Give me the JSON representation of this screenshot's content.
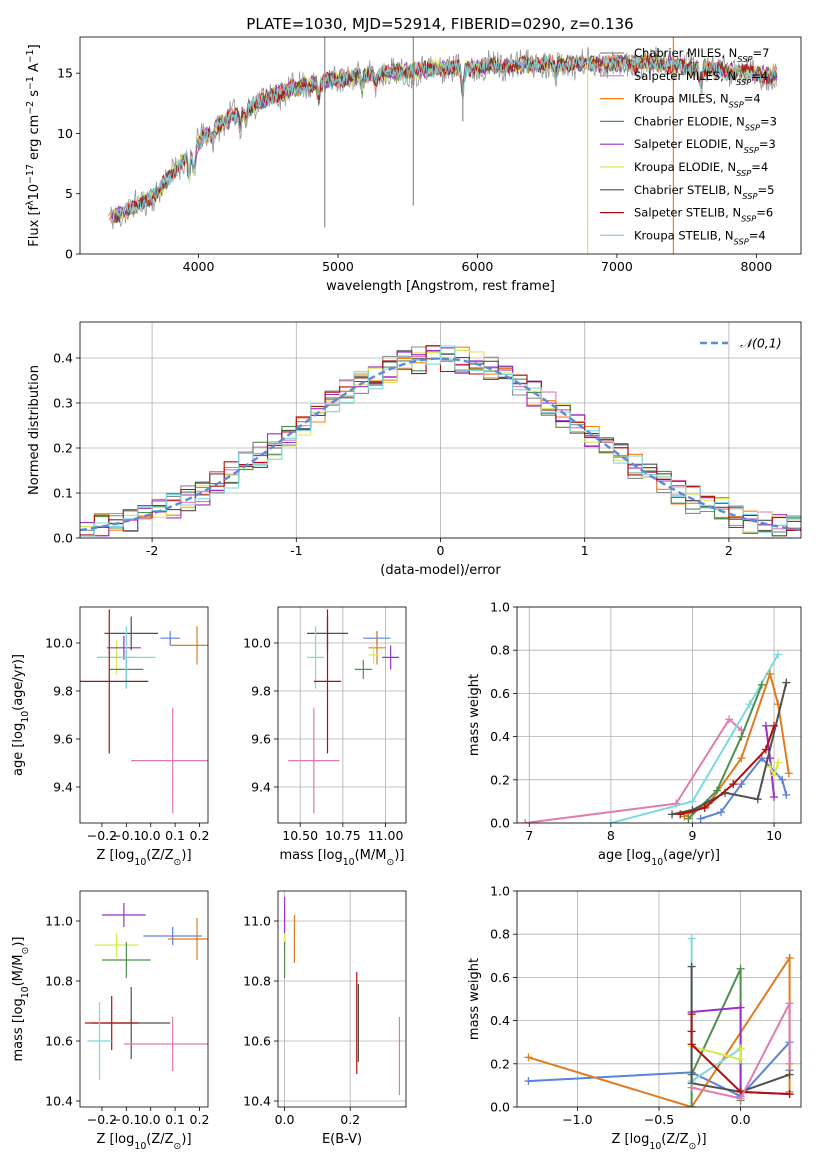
{
  "figure": {
    "title": "PLATE=1030, MJD=52914, FIBERID=0290, z=0.136"
  },
  "colors": {
    "Chabrier MILES": "#8c8c8c",
    "Salpeter MILES": "#e377c2",
    "Kroupa MILES": "#ff7f0e",
    "Chabrier ELODIE": "#4f8f4f",
    "Salpeter ELODIE": "#9b30c8",
    "Kroupa ELODIE": "#d9e85a",
    "Chabrier STELIB": "#505050",
    "Salpeter STELIB": "#b01010",
    "Kroupa STELIB": "#7fd8e0",
    "blue": "#5b83d6",
    "orange": "#e07b1f",
    "green": "#4f8f4f",
    "purple": "#9b30c8",
    "lime": "#d4ec4a",
    "darkgray": "#505050",
    "red": "#b01010",
    "cyan": "#7fd8e0",
    "pink": "#e07bb0",
    "gray": "#8c8c8c"
  },
  "chart_data": [
    {
      "id": "spectrum",
      "type": "line",
      "xlabel": "wavelength [Angstrom, rest frame]",
      "ylabel_parts": [
        "Flux [f",
        "λ",
        "10",
        "−17",
        " erg cm",
        "−2",
        " s",
        "−1",
        " A",
        "−1",
        "]"
      ],
      "xlim": [
        3150,
        8320
      ],
      "ylim": [
        0,
        18
      ],
      "xticks": [
        4000,
        5000,
        6000,
        7000,
        8000
      ],
      "yticks": [
        0,
        5,
        10,
        15
      ],
      "legend_position": "right",
      "series": [
        {
          "name": "Chabrier MILES",
          "nssp": "7",
          "color": "#8c8c8c"
        },
        {
          "name": "Salpeter MILES",
          "nssp": "4",
          "color": "#e377c2"
        },
        {
          "name": "Kroupa MILES",
          "nssp": "4",
          "color": "#ff7f0e"
        },
        {
          "name": "Chabrier ELODIE",
          "nssp": "3",
          "color": "#4f8f4f"
        },
        {
          "name": "Salpeter ELODIE",
          "nssp": "3",
          "color": "#9b30c8"
        },
        {
          "name": "Kroupa ELODIE",
          "nssp": "4",
          "color": "#d9e85a"
        },
        {
          "name": "Chabrier STELIB",
          "nssp": "5",
          "color": "#505050"
        },
        {
          "name": "Salpeter STELIB",
          "nssp": "6",
          "color": "#b01010"
        },
        {
          "name": "Kroupa STELIB",
          "nssp": "4",
          "color": "#7fd8e0"
        }
      ],
      "continuum": {
        "x": [
          3350,
          3500,
          3700,
          3900,
          4100,
          4300,
          4500,
          4700,
          4900,
          5100,
          5300,
          5500,
          5700,
          5900,
          6100,
          6300,
          6500,
          6700,
          6900,
          7100,
          7300,
          7500,
          7700,
          7900,
          8100
        ],
        "y": [
          3.0,
          3.6,
          5.0,
          8.0,
          10.4,
          11.8,
          13.0,
          13.8,
          14.3,
          14.7,
          15.0,
          15.1,
          15.4,
          15.4,
          15.6,
          15.7,
          15.8,
          15.8,
          15.8,
          15.8,
          15.8,
          15.5,
          15.3,
          15.1,
          14.8
        ]
      },
      "spikes": [
        {
          "x": 4905,
          "y1": 2.2,
          "y2": 18
        },
        {
          "x": 5540,
          "y1": 4.0,
          "y2": 18
        },
        {
          "x": 5895,
          "y1": 11.0,
          "y2": 14.5
        },
        {
          "x": 6790,
          "y1": 0,
          "y2": 16.0
        },
        {
          "x": 7405,
          "y1": 0,
          "y2": 18
        }
      ]
    },
    {
      "id": "residuals",
      "type": "histogram",
      "xlabel": "(data-model)/error",
      "ylabel": "Normed distribution",
      "xlim": [
        -2.5,
        2.5
      ],
      "ylim": [
        0,
        0.48
      ],
      "xticks": [
        -2,
        -1,
        0,
        1,
        2
      ],
      "yticks": [
        0.0,
        0.1,
        0.2,
        0.3,
        0.4
      ],
      "legend_position": "top-right",
      "curve": {
        "label": "𝒩(0,1)",
        "color": "#5b8bd6"
      },
      "bin_width": 0.1,
      "series": [
        {
          "color": "#8c8c8c",
          "offset": 0.012,
          "seed": 1
        },
        {
          "color": "#e377c2",
          "offset": -0.008,
          "seed": 2
        },
        {
          "color": "#ff7f0e",
          "offset": 0.005,
          "seed": 3
        },
        {
          "color": "#4f8f4f",
          "offset": 0.01,
          "seed": 4
        },
        {
          "color": "#9b30c8",
          "offset": 0.004,
          "seed": 5
        },
        {
          "color": "#d9e85a",
          "offset": -0.004,
          "seed": 6
        },
        {
          "color": "#505050",
          "offset": 0.015,
          "seed": 7
        },
        {
          "color": "#b01010",
          "offset": 0.008,
          "seed": 8
        },
        {
          "color": "#7fd8e0",
          "offset": -0.01,
          "seed": 9
        }
      ]
    },
    {
      "id": "age-vs-Z",
      "type": "scatter",
      "xlabel_parts": [
        "Z [log",
        "10",
        "(Z/Z",
        "⊙",
        ")]"
      ],
      "ylabel_parts": [
        "age  [log",
        "10",
        "(age/yr)]"
      ],
      "xlim": [
        -0.29,
        0.235
      ],
      "ylim": [
        9.25,
        10.15
      ],
      "xticks": [
        -0.2,
        -0.1,
        0.0,
        0.1,
        0.2
      ],
      "xticklabels": [
        "−0.2",
        "−0.1",
        "0.0",
        "0.1",
        "0.2"
      ],
      "yticks": [
        9.4,
        9.6,
        9.8,
        10.0
      ],
      "points": [
        {
          "x": -0.14,
          "y": 9.94,
          "xerr": 0.08,
          "yerr": 0.07,
          "color": "#d4ec4a"
        },
        {
          "x": -0.11,
          "y": 9.98,
          "xerr": 0.07,
          "yerr": 0.05,
          "color": "#9b30c8"
        },
        {
          "x": -0.08,
          "y": 10.04,
          "xerr": 0.11,
          "yerr": 0.07,
          "color": "#505050"
        },
        {
          "x": -0.1,
          "y": 9.89,
          "xerr": 0.07,
          "yerr": 0.08,
          "color": "#4f8f4f"
        },
        {
          "x": 0.08,
          "y": 10.02,
          "xerr": 0.04,
          "yerr": 0.03,
          "color": "#5b83d6"
        },
        {
          "x": 0.19,
          "y": 9.99,
          "xerr": 0.11,
          "yerr": 0.08,
          "color": "#e07b1f"
        },
        {
          "x": -0.1,
          "y": 9.94,
          "xerr": 0.12,
          "yerr": 0.13,
          "color": "#7fd8e0"
        },
        {
          "x": -0.17,
          "y": 9.84,
          "xerr": 0.16,
          "yerr": 0.3,
          "color": "#b01010"
        },
        {
          "x": 0.09,
          "y": 9.51,
          "xerr": 0.17,
          "yerr": 0.22,
          "color": "#e07bb0"
        }
      ]
    },
    {
      "id": "age-vs-mass",
      "type": "scatter",
      "xlabel_parts": [
        "mass [log",
        "10",
        "(M/M",
        "⊙",
        ")]"
      ],
      "ylabel_parts": [],
      "xlim": [
        10.37,
        11.12
      ],
      "ylim": [
        9.25,
        10.15
      ],
      "xticks": [
        10.5,
        10.75,
        11.0
      ],
      "xticklabels": [
        "10.50",
        "10.75",
        "11.00"
      ],
      "yticks": [
        9.4,
        9.6,
        9.8,
        10.0
      ],
      "points": [
        {
          "x": 10.66,
          "y": 10.04,
          "xerr": 0.12,
          "yerr": 0.07,
          "color": "#505050"
        },
        {
          "x": 10.95,
          "y": 10.02,
          "xerr": 0.08,
          "yerr": 0.03,
          "color": "#5b83d6"
        },
        {
          "x": 11.03,
          "y": 9.94,
          "xerr": 0.05,
          "yerr": 0.05,
          "color": "#9b30c8"
        },
        {
          "x": 10.95,
          "y": 9.98,
          "xerr": 0.05,
          "yerr": 0.07,
          "color": "#e07b1f"
        },
        {
          "x": 10.93,
          "y": 9.95,
          "xerr": 0.03,
          "yerr": 0.04,
          "color": "#d4ec4a"
        },
        {
          "x": 10.87,
          "y": 9.89,
          "xerr": 0.05,
          "yerr": 0.04,
          "color": "#4f8f4f"
        },
        {
          "x": 10.59,
          "y": 9.94,
          "xerr": 0.05,
          "yerr": 0.13,
          "color": "#7fd8e0"
        },
        {
          "x": 10.66,
          "y": 9.84,
          "xerr": 0.08,
          "yerr": 0.3,
          "color": "#b01010"
        },
        {
          "x": 10.58,
          "y": 9.51,
          "xerr": 0.15,
          "yerr": 0.22,
          "color": "#e07bb0"
        }
      ]
    },
    {
      "id": "weight-vs-age",
      "type": "line",
      "xlabel_parts": [
        "age  [log",
        "10",
        "(age/yr)]"
      ],
      "ylabel": "mass weight",
      "xlim": [
        6.85,
        10.33
      ],
      "ylim": [
        0,
        1
      ],
      "xticks": [
        7,
        8,
        9,
        10
      ],
      "yticks": [
        0.0,
        0.2,
        0.4,
        0.6,
        0.8,
        1.0
      ],
      "xticklabels": [
        "7",
        "8",
        "9",
        "10"
      ],
      "yticklabels": [
        "0.0",
        "0.2",
        "0.4",
        "0.6",
        "0.8",
        "1.0"
      ],
      "series": [
        {
          "color": "#e07bb0",
          "x": [
            6.95,
            8.8,
            9.45,
            9.6
          ],
          "y": [
            0.0,
            0.09,
            0.48,
            0.43
          ]
        },
        {
          "color": "#7fd8e0",
          "x": [
            8.0,
            9.0,
            9.7,
            10.05
          ],
          "y": [
            0.0,
            0.1,
            0.55,
            0.78
          ]
        },
        {
          "color": "#5b83d6",
          "x": [
            9.1,
            9.35,
            9.6,
            9.85,
            10.1,
            10.15
          ],
          "y": [
            0.02,
            0.05,
            0.18,
            0.3,
            0.2,
            0.13
          ]
        },
        {
          "color": "#e07b1f",
          "x": [
            8.9,
            9.2,
            9.6,
            9.95,
            10.05,
            10.18
          ],
          "y": [
            0.03,
            0.09,
            0.3,
            0.69,
            0.55,
            0.23
          ]
        },
        {
          "color": "#4f8f4f",
          "x": [
            8.95,
            9.3,
            9.6,
            9.85
          ],
          "y": [
            0.02,
            0.15,
            0.4,
            0.64
          ]
        },
        {
          "color": "#9b30c8",
          "x": [
            9.9,
            9.95,
            10.0
          ],
          "y": [
            0.45,
            0.3,
            0.12
          ]
        },
        {
          "color": "#d4ec4a",
          "x": [
            9.95,
            10.0,
            10.05
          ],
          "y": [
            0.26,
            0.22,
            0.28
          ]
        },
        {
          "color": "#505050",
          "x": [
            8.75,
            9.0,
            9.4,
            9.8,
            10.15
          ],
          "y": [
            0.04,
            0.06,
            0.14,
            0.11,
            0.65
          ]
        },
        {
          "color": "#b01010",
          "x": [
            8.85,
            9.15,
            9.5,
            9.9,
            10.0
          ],
          "y": [
            0.04,
            0.07,
            0.18,
            0.34,
            0.45
          ]
        }
      ]
    },
    {
      "id": "mass-vs-Z",
      "type": "scatter",
      "xlabel_parts": [
        "Z [log",
        "10",
        "(Z/Z",
        "⊙",
        ")]"
      ],
      "ylabel_parts": [
        "mass [log",
        "10",
        "(M/M",
        "⊙",
        ")]"
      ],
      "xlim": [
        -0.29,
        0.235
      ],
      "ylim": [
        10.38,
        11.1
      ],
      "xticks": [
        -0.2,
        -0.1,
        0.0,
        0.1,
        0.2
      ],
      "xticklabels": [
        "−0.2",
        "−0.1",
        "0.0",
        "0.1",
        "0.2"
      ],
      "yticks": [
        10.4,
        10.6,
        10.8,
        11.0
      ],
      "points": [
        {
          "x": -0.11,
          "y": 11.02,
          "xerr": 0.09,
          "yerr": 0.04,
          "color": "#9b30c8"
        },
        {
          "x": 0.09,
          "y": 10.95,
          "xerr": 0.12,
          "yerr": 0.03,
          "color": "#5b83d6"
        },
        {
          "x": 0.19,
          "y": 10.94,
          "xerr": 0.12,
          "yerr": 0.07,
          "color": "#e07b1f"
        },
        {
          "x": -0.14,
          "y": 10.92,
          "xerr": 0.09,
          "yerr": 0.04,
          "color": "#d4ec4a"
        },
        {
          "x": -0.1,
          "y": 10.87,
          "xerr": 0.1,
          "yerr": 0.06,
          "color": "#4f8f4f"
        },
        {
          "x": -0.08,
          "y": 10.66,
          "xerr": 0.16,
          "yerr": 0.12,
          "color": "#505050"
        },
        {
          "x": -0.16,
          "y": 10.66,
          "xerr": 0.11,
          "yerr": 0.09,
          "color": "#b01010"
        },
        {
          "x": -0.21,
          "y": 10.6,
          "xerr": 0.05,
          "yerr": 0.13,
          "color": "#7fd8e0"
        },
        {
          "x": 0.09,
          "y": 10.59,
          "xerr": 0.2,
          "yerr": 0.09,
          "color": "#e07bb0"
        }
      ]
    },
    {
      "id": "mass-vs-EBV",
      "type": "scatter",
      "xlabel": "E(B-V)",
      "ylabel_parts": [],
      "xlim": [
        -0.02,
        0.37
      ],
      "ylim": [
        10.38,
        11.1
      ],
      "xticks": [
        0.0,
        0.2
      ],
      "xticklabels": [
        "0.0",
        "0.2"
      ],
      "yticks": [
        10.4,
        10.6,
        10.8,
        11.0
      ],
      "points": [
        {
          "x": 0.0,
          "y": 11.0,
          "xerr": 0.0,
          "yerr": 0.08,
          "color": "#9b30c8"
        },
        {
          "x": 0.03,
          "y": 10.94,
          "xerr": 0.0,
          "yerr": 0.08,
          "color": "#e07b1f"
        },
        {
          "x": 0.0,
          "y": 10.92,
          "xerr": 0.0,
          "yerr": 0.04,
          "color": "#d4ec4a"
        },
        {
          "x": 0.0,
          "y": 10.87,
          "xerr": 0.0,
          "yerr": 0.06,
          "color": "#4f8f4f"
        },
        {
          "x": 0.225,
          "y": 10.66,
          "xerr": 0.0,
          "yerr": 0.13,
          "color": "#505050"
        },
        {
          "x": 0.22,
          "y": 10.66,
          "xerr": 0.0,
          "yerr": 0.17,
          "color": "#b01010"
        },
        {
          "x": 0.35,
          "y": 10.55,
          "xerr": 0.0,
          "yerr": 0.13,
          "color": "#e07bb0"
        }
      ]
    },
    {
      "id": "weight-vs-Z",
      "type": "line",
      "xlabel_parts": [
        "Z [log",
        "10",
        "(Z/Z",
        "⊙",
        ")]"
      ],
      "ylabel": "mass weight",
      "xlim": [
        -1.37,
        0.37
      ],
      "ylim": [
        0,
        1
      ],
      "xticks": [
        -1.0,
        -0.5,
        0.0
      ],
      "xticklabels": [
        "−1.0",
        "−0.5",
        "0.0"
      ],
      "yticks": [
        0.0,
        0.2,
        0.4,
        0.6,
        0.8,
        1.0
      ],
      "yticklabels": [
        "0.0",
        "0.2",
        "0.4",
        "0.6",
        "0.8",
        "1.0"
      ],
      "series": [
        {
          "color": "#5b83d6",
          "x": [
            -1.3,
            -0.3,
            0.0,
            0.3,
            0.3
          ],
          "y": [
            0.12,
            0.16,
            0.05,
            0.3,
            0.17
          ]
        },
        {
          "color": "#e07b1f",
          "x": [
            -1.3,
            -0.3,
            0.3,
            0.3
          ],
          "y": [
            0.23,
            0.0,
            0.69,
            0.07
          ]
        },
        {
          "color": "#7fd8e0",
          "x": [
            -0.3,
            -0.3,
            0.0,
            0.0
          ],
          "y": [
            0.78,
            0.12,
            0.27,
            0.2
          ]
        },
        {
          "color": "#4f8f4f",
          "x": [
            -0.3,
            -0.3,
            0.0,
            0.0
          ],
          "y": [
            0.0,
            0.15,
            0.64,
            0.03
          ]
        },
        {
          "color": "#9b30c8",
          "x": [
            -0.3,
            0.0,
            0.0,
            0.3
          ],
          "y": [
            0.44,
            0.46,
            0.07,
            0.06
          ]
        },
        {
          "color": "#d4ec4a",
          "x": [
            -0.3,
            0.0,
            0.0
          ],
          "y": [
            0.28,
            0.22,
            0.27
          ]
        },
        {
          "color": "#505050",
          "x": [
            -0.3,
            -0.3,
            0.0,
            0.3
          ],
          "y": [
            0.65,
            0.11,
            0.07,
            0.15
          ]
        },
        {
          "color": "#b01010",
          "x": [
            -0.3,
            -0.3,
            -0.3,
            0.0,
            0.3
          ],
          "y": [
            0.43,
            0.35,
            0.29,
            0.07,
            0.06
          ]
        },
        {
          "color": "#e07bb0",
          "x": [
            -0.3,
            0.0,
            0.3,
            0.3
          ],
          "y": [
            0.09,
            0.04,
            0.48,
            0.2
          ]
        }
      ]
    }
  ]
}
